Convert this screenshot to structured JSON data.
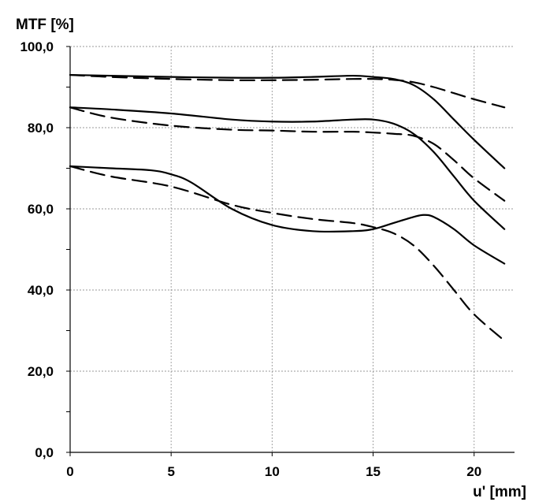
{
  "chart_data": {
    "type": "line",
    "title": "",
    "xlabel": "u' [mm]",
    "ylabel": "MTF [%]",
    "xlim": [
      0,
      22
    ],
    "ylim": [
      0,
      100
    ],
    "x_ticks": [
      "0",
      "5",
      "10",
      "15",
      "20"
    ],
    "x_tick_values": [
      0,
      5,
      10,
      15,
      20
    ],
    "y_ticks": [
      "0,0",
      "20,0",
      "40,0",
      "60,0",
      "80,0",
      "100,0"
    ],
    "y_tick_values": [
      0,
      20,
      40,
      60,
      80,
      100
    ],
    "grid": true,
    "series": [
      {
        "style": "solid",
        "x": [
          0,
          2,
          5,
          8,
          10,
          12,
          14,
          15,
          16,
          17,
          18,
          19,
          20,
          21.5
        ],
        "y": [
          93.0,
          92.8,
          92.5,
          92.3,
          92.3,
          92.5,
          92.8,
          92.5,
          92.0,
          90.5,
          87.0,
          82.0,
          77.0,
          70.0
        ]
      },
      {
        "style": "dashed",
        "x": [
          0,
          2,
          5,
          8,
          10,
          12,
          14,
          15,
          16,
          17,
          18,
          19,
          20,
          21.5
        ],
        "y": [
          93.0,
          92.5,
          92.0,
          91.7,
          91.7,
          91.8,
          92.0,
          92.0,
          91.8,
          91.2,
          90.0,
          88.5,
          87.0,
          85.0
        ]
      },
      {
        "style": "solid",
        "x": [
          0,
          2,
          5,
          8,
          10,
          12,
          14,
          15,
          16,
          17,
          18,
          19,
          20,
          21.5
        ],
        "y": [
          85.0,
          84.5,
          83.5,
          82.0,
          81.5,
          81.5,
          82.0,
          82.0,
          81.0,
          78.5,
          74.0,
          68.0,
          62.0,
          55.0
        ]
      },
      {
        "style": "dashed",
        "x": [
          0,
          2,
          5,
          8,
          10,
          12,
          14,
          15,
          16,
          17,
          18,
          19,
          20,
          21.5
        ],
        "y": [
          85.0,
          82.5,
          80.5,
          79.5,
          79.3,
          79.0,
          79.0,
          78.8,
          78.5,
          78.0,
          76.0,
          72.0,
          67.5,
          62.0
        ]
      },
      {
        "style": "solid",
        "x": [
          0,
          2,
          4,
          5,
          6,
          8,
          10,
          12,
          14,
          15,
          16,
          17,
          17.5,
          18,
          19,
          20,
          21.5
        ],
        "y": [
          70.5,
          70.0,
          69.5,
          68.5,
          66.5,
          60.0,
          56.0,
          54.5,
          54.5,
          55.0,
          56.5,
          58.0,
          58.5,
          58.0,
          55.0,
          51.0,
          46.5
        ]
      },
      {
        "style": "dashed",
        "x": [
          0,
          2,
          5,
          8,
          10,
          12,
          14,
          15,
          16,
          17,
          18,
          19,
          20,
          21.5
        ],
        "y": [
          70.5,
          68.0,
          65.5,
          61.0,
          59.0,
          57.5,
          56.5,
          55.5,
          54.0,
          51.0,
          46.0,
          40.0,
          34.0,
          27.5
        ]
      }
    ]
  }
}
